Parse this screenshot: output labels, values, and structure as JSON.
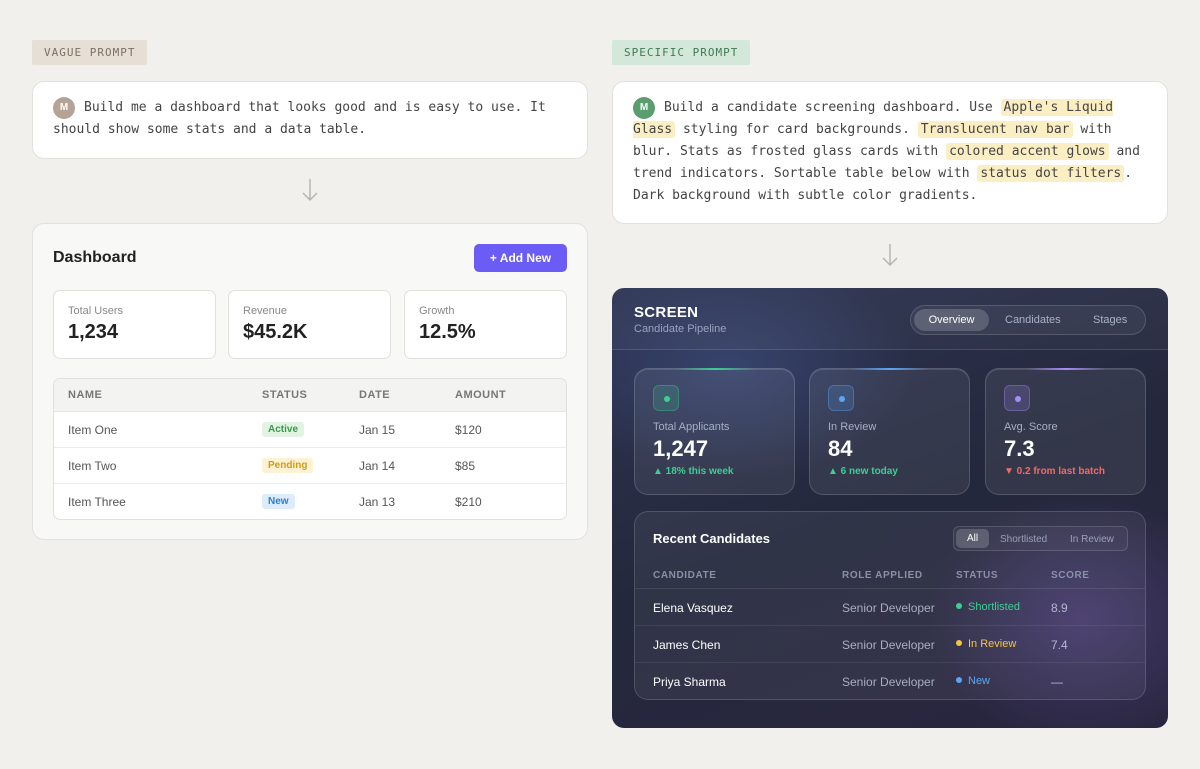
{
  "vague": {
    "tag": "VAGUE PROMPT",
    "avatar": "M",
    "prompt": "Build me a dashboard that looks good and is easy to use. It should show some stats and a data table."
  },
  "specific": {
    "tag": "SPECIFIC PROMPT",
    "avatar": "M",
    "prompt_parts": [
      "Build a candidate screening dashboard. Use ",
      "Apple's Liquid Glass",
      " styling for card backgrounds. ",
      "Translucent nav bar",
      " with blur. Stats as frosted glass cards with ",
      "colored accent glows",
      " and trend indicators. Sortable table below with ",
      "status dot filters",
      ". Dark background with subtle color gradients."
    ]
  },
  "simple_dashboard": {
    "title": "Dashboard",
    "add_button": "+ Add New",
    "stats": [
      {
        "label": "Total Users",
        "value": "1,234"
      },
      {
        "label": "Revenue",
        "value": "$45.2K"
      },
      {
        "label": "Growth",
        "value": "12.5%"
      }
    ],
    "columns": [
      "NAME",
      "STATUS",
      "DATE",
      "AMOUNT"
    ],
    "rows": [
      {
        "name": "Item One",
        "status": "Active",
        "date": "Jan 15",
        "amount": "$120"
      },
      {
        "name": "Item Two",
        "status": "Pending",
        "date": "Jan 14",
        "amount": "$85"
      },
      {
        "name": "Item Three",
        "status": "New",
        "date": "Jan 13",
        "amount": "$210"
      }
    ]
  },
  "screen_dashboard": {
    "brand": "SCREEN",
    "subtitle": "Candidate Pipeline",
    "tabs": [
      "Overview",
      "Candidates",
      "Stages"
    ],
    "active_tab": "Overview",
    "stats": [
      {
        "label": "Total Applicants",
        "value": "1,247",
        "trend": "▲ 18% this week",
        "accent": "#3ccf91",
        "trend_color": "#3ccf91"
      },
      {
        "label": "In Review",
        "value": "84",
        "trend": "▲ 6 new today",
        "accent": "#5aa6f5",
        "trend_color": "#3ccf91"
      },
      {
        "label": "Avg. Score",
        "value": "7.3",
        "trend": "▼ 0.2 from last batch",
        "accent": "#a78bfa",
        "trend_color": "#f06a6a"
      }
    ],
    "table_title": "Recent Candidates",
    "filters": [
      "All",
      "Shortlisted",
      "In Review"
    ],
    "active_filter": "All",
    "columns": [
      "CANDIDATE",
      "ROLE APPLIED",
      "STATUS",
      "SCORE"
    ],
    "rows": [
      {
        "candidate": "Elena Vasquez",
        "role": "Senior Developer",
        "status": "Shortlisted",
        "status_color": "#3ccf91",
        "score": "8.9"
      },
      {
        "candidate": "James Chen",
        "role": "Senior Developer",
        "status": "In Review",
        "status_color": "#f5c542",
        "score": "7.4"
      },
      {
        "candidate": "Priya Sharma",
        "role": "Senior Developer",
        "status": "New",
        "status_color": "#5aa6f5",
        "score": "—"
      }
    ]
  }
}
